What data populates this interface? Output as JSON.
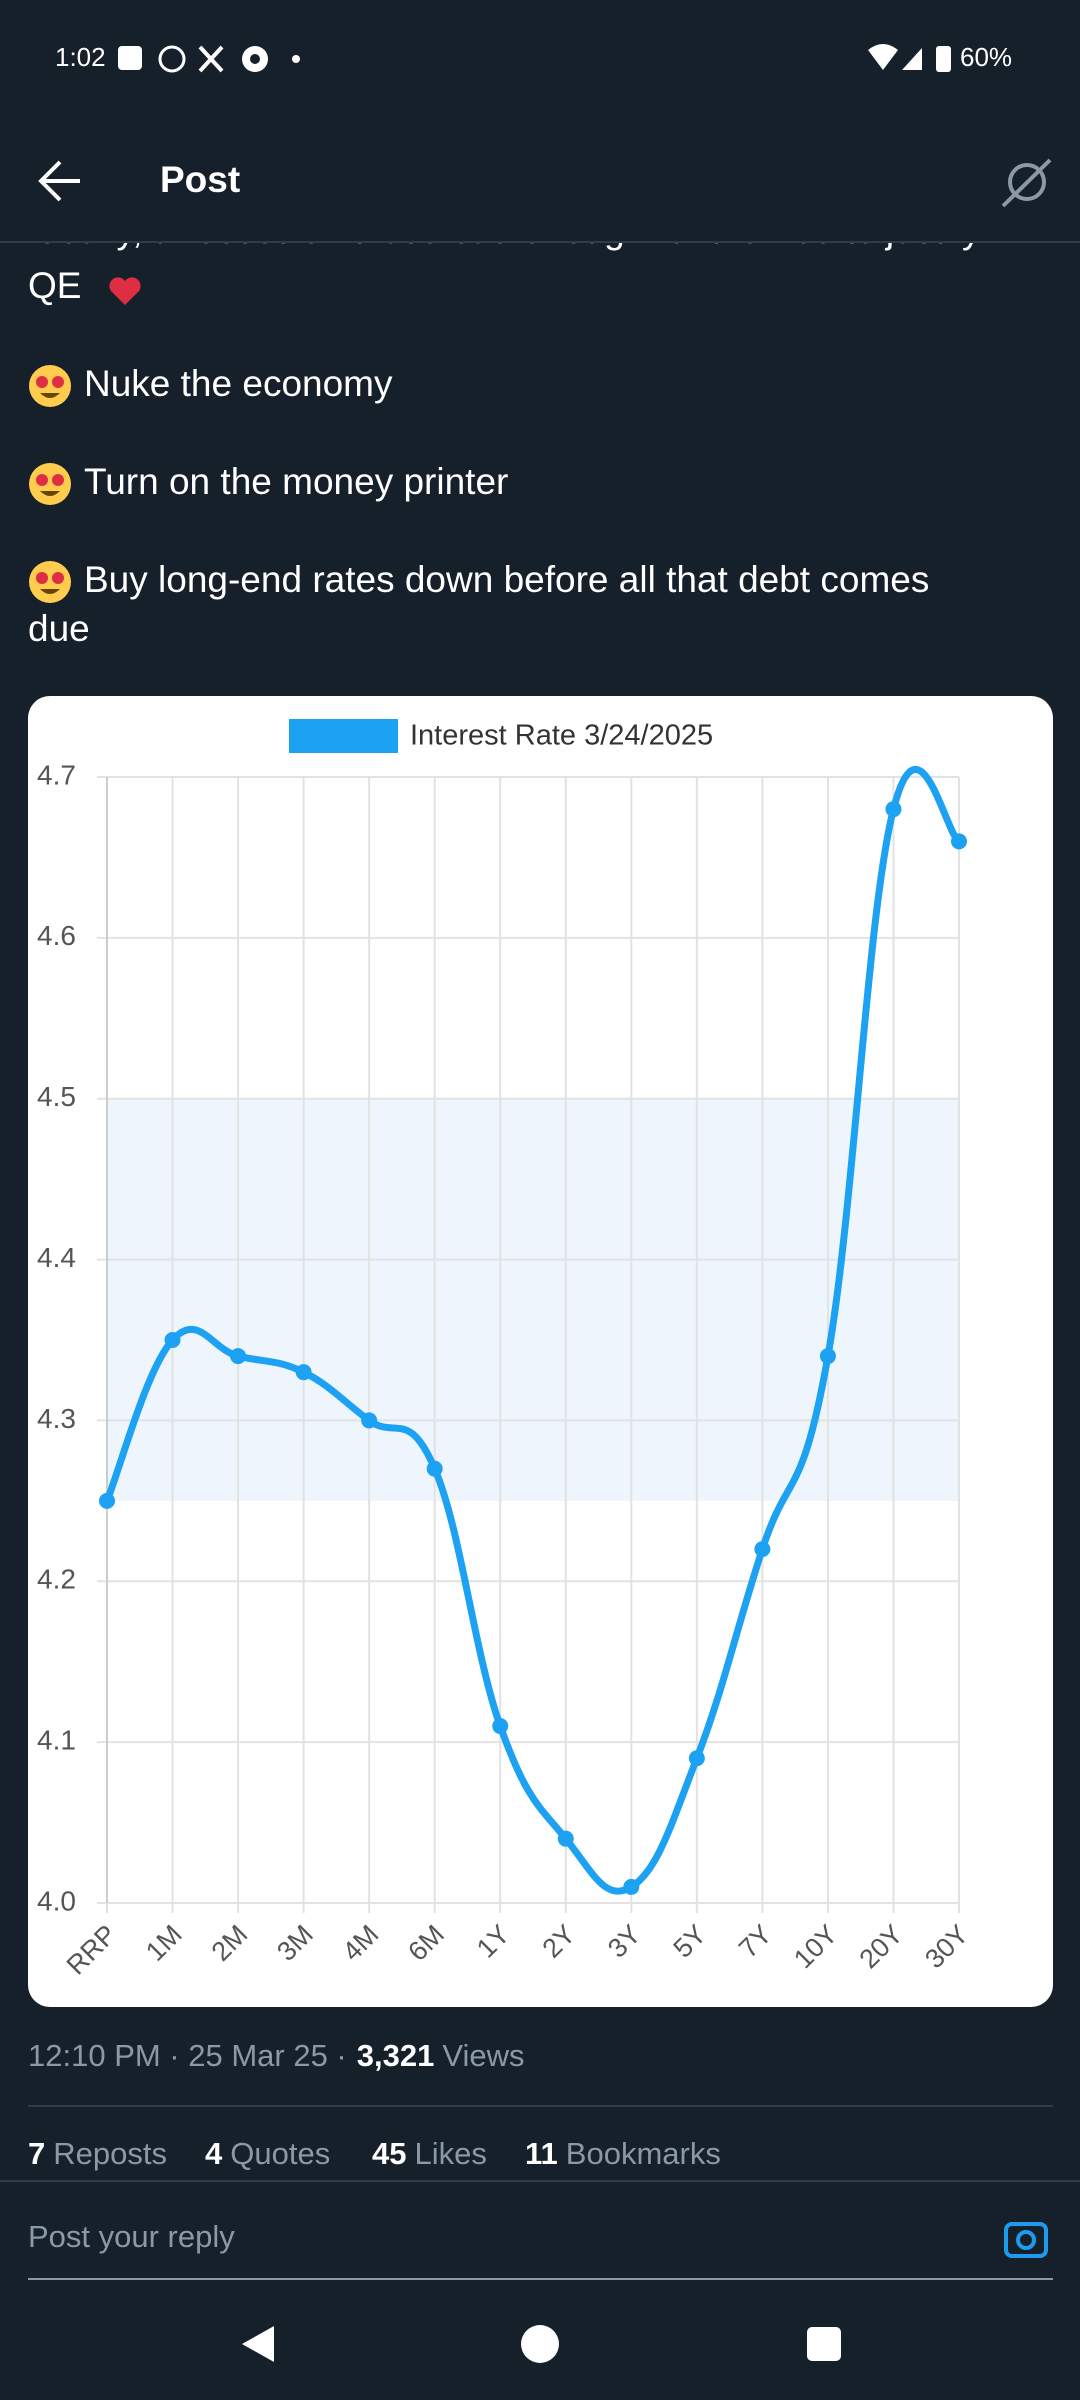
{
  "status_bar": {
    "time": "1:02",
    "battery": "60%"
  },
  "header": {
    "title": "Post"
  },
  "post": {
    "lines": [
      "Ideally, a recession that's bad enough for the Fed to justify",
      "QE",
      "Nuke the economy",
      "Turn on the money printer",
      "Buy long-end rates down before all that debt comes",
      "due"
    ]
  },
  "chart_data": {
    "type": "line",
    "categories": [
      "RRP",
      "1M",
      "2M",
      "3M",
      "4M",
      "6M",
      "1Y",
      "2Y",
      "3Y",
      "5Y",
      "7Y",
      "10Y",
      "20Y",
      "30Y"
    ],
    "series": [
      {
        "name": "Interest Rate 3/24/2025",
        "color": "#1da1f2",
        "values": [
          4.25,
          4.35,
          4.34,
          4.33,
          4.3,
          4.27,
          4.11,
          4.04,
          4.01,
          4.09,
          4.22,
          4.34,
          4.68,
          4.66
        ]
      }
    ],
    "shaded_range": [
      4.25,
      4.5
    ],
    "shaded_color": "#eef5fc",
    "ylim": [
      4.0,
      4.7
    ],
    "yticks": [
      {
        "value": 4,
        "label": "4.0"
      },
      4.1,
      4.2,
      4.3,
      4.4,
      4.5,
      4.6,
      4.7
    ],
    "grid": true,
    "legend": "top"
  },
  "meta": {
    "time": "12:10 PM · 25 Mar 25 ·",
    "views": "3,321",
    "views_label": "Views"
  },
  "stats": [
    {
      "count": "7",
      "label": "Reposts"
    },
    {
      "count": "4",
      "label": "Quotes"
    },
    {
      "count": "45",
      "label": "Likes"
    },
    {
      "count": "11",
      "label": "Bookmarks"
    }
  ],
  "reply": {
    "placeholder": "Post your reply"
  }
}
